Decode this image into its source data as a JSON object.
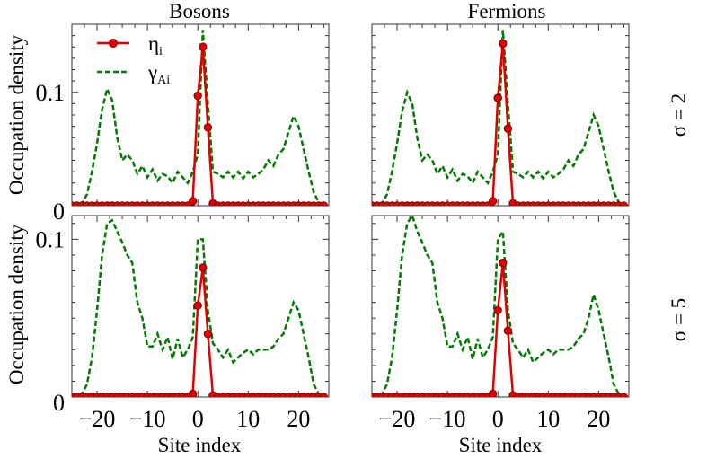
{
  "chart_data": {
    "type": "line",
    "column_titles": [
      "Bosons",
      "Fermions"
    ],
    "row_labels": [
      "σ = 2",
      "σ = 5"
    ],
    "xlabel": "Site index",
    "ylabel": "Occupation density",
    "xlim": [
      -25,
      26
    ],
    "xticks": [
      -20,
      -10,
      0,
      10,
      20
    ],
    "xtick_labels": [
      "−20",
      "−10",
      "0",
      "10",
      "20"
    ],
    "legend": {
      "position": "top-left",
      "entries": [
        {
          "main": "η",
          "sub": "i",
          "style": "solid-dots",
          "color": "#e00000"
        },
        {
          "main": "γ",
          "sub": "Ai",
          "style": "dashed",
          "color": "#007a00"
        }
      ]
    },
    "x": [
      -25,
      -24,
      -23,
      -22,
      -21,
      -20,
      -19,
      -18,
      -17,
      -16,
      -15,
      -14,
      -13,
      -12,
      -11,
      -10,
      -9,
      -8,
      -7,
      -6,
      -5,
      -4,
      -3,
      -2,
      -1,
      0,
      1,
      2,
      3,
      4,
      5,
      6,
      7,
      8,
      9,
      10,
      11,
      12,
      13,
      14,
      15,
      16,
      17,
      18,
      19,
      20,
      21,
      22,
      23,
      24,
      25
    ],
    "panels": [
      {
        "row": 0,
        "col": 0,
        "ylim": [
          0,
          0.16
        ],
        "yticks": [
          0,
          0.1
        ],
        "ytick_labels": [
          "0",
          "0.1"
        ],
        "series": [
          {
            "name": "γ_Ai",
            "values": [
              0.0,
              0.0,
              0.002,
              0.01,
              0.03,
              0.055,
              0.085,
              0.103,
              0.093,
              0.06,
              0.04,
              0.045,
              0.04,
              0.028,
              0.035,
              0.025,
              0.032,
              0.022,
              0.028,
              0.026,
              0.02,
              0.03,
              0.025,
              0.02,
              0.03,
              0.045,
              0.155,
              0.09,
              0.03,
              0.028,
              0.025,
              0.03,
              0.025,
              0.03,
              0.024,
              0.03,
              0.025,
              0.028,
              0.032,
              0.04,
              0.035,
              0.045,
              0.05,
              0.065,
              0.079,
              0.07,
              0.05,
              0.03,
              0.012,
              0.003,
              0.0
            ]
          },
          {
            "name": "η_i",
            "values": [
              0.0,
              0.0,
              0.0,
              0.0,
              0.0,
              0.0,
              0.0,
              0.0,
              0.0,
              0.0,
              0.0,
              0.0,
              0.0,
              0.0,
              0.0,
              0.0,
              0.0,
              0.0,
              0.0,
              0.0,
              0.0,
              0.0,
              0.0,
              0.0,
              0.004,
              0.097,
              0.14,
              0.069,
              0.002,
              0.0,
              0.0,
              0.0,
              0.0,
              0.0,
              0.0,
              0.0,
              0.0,
              0.0,
              0.0,
              0.0,
              0.0,
              0.0,
              0.0,
              0.0,
              0.0,
              0.0,
              0.0,
              0.0,
              0.0,
              0.0,
              0.0
            ]
          }
        ]
      },
      {
        "row": 0,
        "col": 1,
        "ylim": [
          0,
          0.16
        ],
        "yticks": [
          0,
          0.1
        ],
        "ytick_labels": [
          "0",
          "0.1"
        ],
        "series": [
          {
            "name": "γ_Ai",
            "values": [
              0.0,
              0.0,
              0.002,
              0.01,
              0.03,
              0.055,
              0.083,
              0.1,
              0.09,
              0.06,
              0.04,
              0.045,
              0.04,
              0.028,
              0.035,
              0.025,
              0.032,
              0.022,
              0.028,
              0.026,
              0.02,
              0.03,
              0.025,
              0.02,
              0.03,
              0.045,
              0.155,
              0.09,
              0.03,
              0.028,
              0.025,
              0.03,
              0.025,
              0.03,
              0.024,
              0.03,
              0.025,
              0.028,
              0.032,
              0.04,
              0.035,
              0.045,
              0.05,
              0.065,
              0.08,
              0.07,
              0.05,
              0.03,
              0.012,
              0.003,
              0.0
            ]
          },
          {
            "name": "η_i",
            "values": [
              0.0,
              0.0,
              0.0,
              0.0,
              0.0,
              0.0,
              0.0,
              0.0,
              0.0,
              0.0,
              0.0,
              0.0,
              0.0,
              0.0,
              0.0,
              0.0,
              0.0,
              0.0,
              0.0,
              0.0,
              0.0,
              0.0,
              0.0,
              0.0,
              0.004,
              0.095,
              0.143,
              0.068,
              0.002,
              0.0,
              0.0,
              0.0,
              0.0,
              0.0,
              0.0,
              0.0,
              0.0,
              0.0,
              0.0,
              0.0,
              0.0,
              0.0,
              0.0,
              0.0,
              0.0,
              0.0,
              0.0,
              0.0,
              0.0,
              0.0,
              0.0
            ]
          }
        ]
      },
      {
        "row": 1,
        "col": 0,
        "ylim": [
          0,
          0.115
        ],
        "yticks": [
          0,
          0.1
        ],
        "ytick_labels": [
          "0",
          "0.1"
        ],
        "series": [
          {
            "name": "γ_Ai",
            "values": [
              0.0,
              0.0,
              0.002,
              0.008,
              0.025,
              0.055,
              0.09,
              0.11,
              0.112,
              0.105,
              0.098,
              0.09,
              0.085,
              0.06,
              0.05,
              0.032,
              0.032,
              0.04,
              0.03,
              0.038,
              0.024,
              0.037,
              0.025,
              0.03,
              0.038,
              0.1,
              0.1,
              0.055,
              0.034,
              0.03,
              0.025,
              0.03,
              0.022,
              0.025,
              0.028,
              0.03,
              0.027,
              0.03,
              0.03,
              0.03,
              0.032,
              0.037,
              0.04,
              0.05,
              0.06,
              0.055,
              0.04,
              0.025,
              0.008,
              0.002,
              0.0
            ]
          },
          {
            "name": "η_i",
            "values": [
              0.0,
              0.0,
              0.0,
              0.0,
              0.0,
              0.0,
              0.0,
              0.0,
              0.0,
              0.0,
              0.0,
              0.0,
              0.0,
              0.0,
              0.0,
              0.0,
              0.0,
              0.0,
              0.0,
              0.0,
              0.0,
              0.0,
              0.0,
              0.0,
              0.002,
              0.058,
              0.082,
              0.04,
              0.001,
              0.0,
              0.0,
              0.0,
              0.0,
              0.0,
              0.0,
              0.0,
              0.0,
              0.0,
              0.0,
              0.0,
              0.0,
              0.0,
              0.0,
              0.0,
              0.0,
              0.0,
              0.0,
              0.0,
              0.0,
              0.0,
              0.0
            ]
          }
        ]
      },
      {
        "row": 1,
        "col": 1,
        "ylim": [
          0,
          0.115
        ],
        "yticks": [
          0,
          0.1
        ],
        "ytick_labels": [
          "0",
          "0.1"
        ],
        "series": [
          {
            "name": "γ_Ai",
            "values": [
              0.0,
              0.0,
              0.002,
              0.008,
              0.025,
              0.055,
              0.09,
              0.11,
              0.115,
              0.105,
              0.098,
              0.09,
              0.085,
              0.06,
              0.05,
              0.032,
              0.032,
              0.04,
              0.03,
              0.038,
              0.024,
              0.037,
              0.025,
              0.03,
              0.038,
              0.1,
              0.105,
              0.055,
              0.034,
              0.03,
              0.025,
              0.03,
              0.022,
              0.025,
              0.028,
              0.03,
              0.027,
              0.03,
              0.03,
              0.03,
              0.032,
              0.037,
              0.04,
              0.05,
              0.065,
              0.055,
              0.04,
              0.025,
              0.008,
              0.002,
              0.0
            ]
          },
          {
            "name": "η_i",
            "values": [
              0.0,
              0.0,
              0.0,
              0.0,
              0.0,
              0.0,
              0.0,
              0.0,
              0.0,
              0.0,
              0.0,
              0.0,
              0.0,
              0.0,
              0.0,
              0.0,
              0.0,
              0.0,
              0.0,
              0.0,
              0.0,
              0.0,
              0.0,
              0.0,
              0.002,
              0.055,
              0.085,
              0.042,
              0.001,
              0.0,
              0.0,
              0.0,
              0.0,
              0.0,
              0.0,
              0.0,
              0.0,
              0.0,
              0.0,
              0.0,
              0.0,
              0.0,
              0.0,
              0.0,
              0.0,
              0.0,
              0.0,
              0.0,
              0.0,
              0.0,
              0.0
            ]
          }
        ]
      }
    ]
  }
}
